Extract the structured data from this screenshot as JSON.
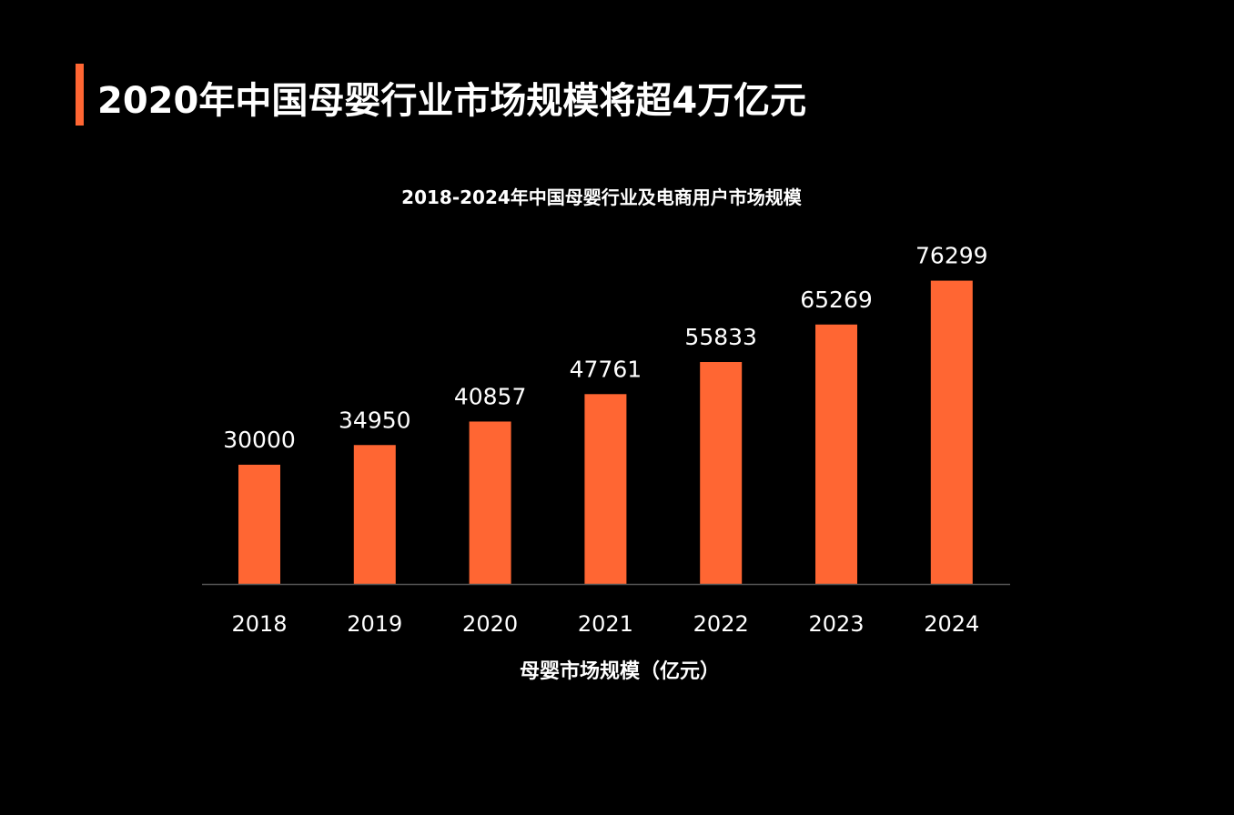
{
  "header": {
    "title": "2020年中国母婴行业市场规模将超4万亿元"
  },
  "colors": {
    "accent": "#FF6633",
    "bar": "#FF6633",
    "axis": "#555555",
    "background": "#000000",
    "text": "#FFFFFF"
  },
  "chart_data": {
    "type": "bar",
    "title": "2018-2024年中国母婴行业及电商用户市场规模",
    "xlabel": "母婴市场规模（亿元）",
    "ylabel": "",
    "categories": [
      "2018",
      "2019",
      "2020",
      "2021",
      "2022",
      "2023",
      "2024"
    ],
    "values": [
      30000,
      34950,
      40857,
      47761,
      55833,
      65269,
      76299
    ],
    "data_labels": [
      "30000",
      "34950",
      "40857",
      "47761",
      "55833",
      "65269",
      "76299"
    ],
    "ylim": [
      0,
      80000
    ],
    "grid": false,
    "legend": "none"
  }
}
